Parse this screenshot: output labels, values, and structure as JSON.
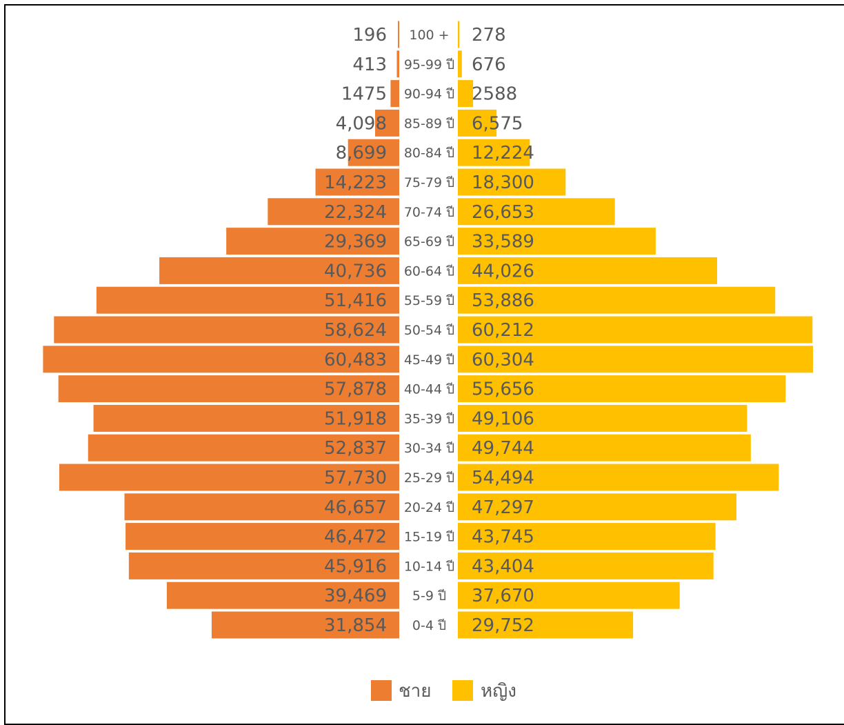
{
  "chart_data": {
    "type": "bar",
    "orientation": "horizontal-population-pyramid",
    "categories": [
      "100 +",
      "95-99 ปี",
      "90-94 ปี",
      "85-89 ปี",
      "80-84 ปี",
      "75-79 ปี",
      "70-74 ปี",
      "65-69 ปี",
      "60-64 ปี",
      "55-59 ปี",
      "50-54 ปี",
      "45-49 ปี",
      "40-44 ปี",
      "35-39 ปี",
      "30-34 ปี",
      "25-29 ปี",
      "20-24 ปี",
      "15-19 ปี",
      "10-14 ปี",
      "5-9 ปี",
      "0-4 ปี"
    ],
    "series": [
      {
        "name": "ชาย",
        "color": "#ED7D31",
        "side": "left",
        "values": [
          196,
          413,
          1475,
          4098,
          8699,
          14223,
          22324,
          29369,
          40736,
          51416,
          58624,
          60483,
          57878,
          51918,
          52837,
          57730,
          46657,
          46472,
          45916,
          39469,
          31854
        ],
        "labels": [
          "196",
          "413",
          "1475",
          "4,098",
          "8,699",
          "14,223",
          "22,324",
          "29,369",
          "40,736",
          "51,416",
          "58,624",
          "60,483",
          "57,878",
          "51,918",
          "52,837",
          "57,730",
          "46,657",
          "46,472",
          "45,916",
          "39,469",
          "31,854"
        ]
      },
      {
        "name": "หญิง",
        "color": "#FFC000",
        "side": "right",
        "values": [
          278,
          676,
          2588,
          6575,
          12224,
          18300,
          26653,
          33589,
          44026,
          53886,
          60212,
          60304,
          55656,
          49106,
          49744,
          54494,
          47297,
          43745,
          43404,
          37670,
          29752
        ],
        "labels": [
          "278",
          "676",
          "2588",
          "6,575",
          "12,224",
          "18,300",
          "26,653",
          "33,589",
          "44,026",
          "53,886",
          "60,212",
          "60,304",
          "55,656",
          "49,106",
          "49,744",
          "54,494",
          "47,297",
          "43,745",
          "43,404",
          "37,670",
          "29,752"
        ]
      }
    ],
    "title": "",
    "xlabel": "",
    "ylabel": "",
    "xlim": [
      0,
      61000
    ],
    "grid": false,
    "legend": "bottom-center"
  }
}
